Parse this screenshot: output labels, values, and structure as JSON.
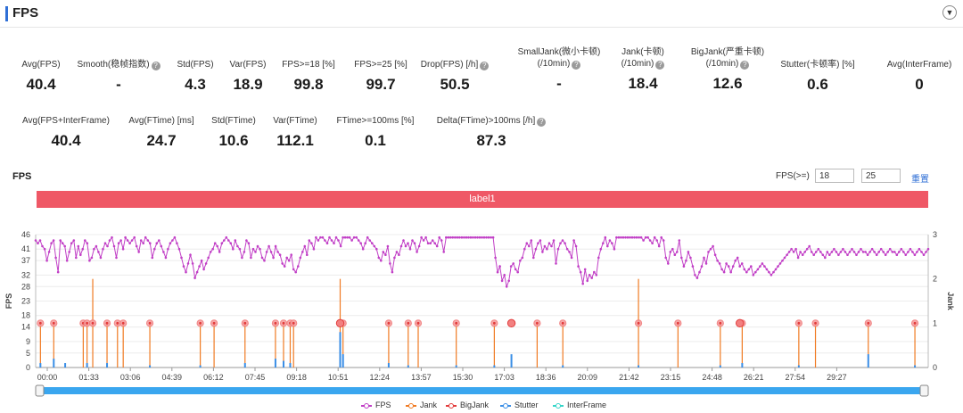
{
  "header": {
    "title": "FPS",
    "collapse_icon": "chevron-down-icon"
  },
  "stats_row1": [
    {
      "label": "Avg(FPS)",
      "value": "40.4",
      "help": false
    },
    {
      "label": "Smooth(稳帧指数)",
      "value": "-",
      "help": true
    },
    {
      "label": "Std(FPS)",
      "value": "4.3",
      "help": false
    },
    {
      "label": "Var(FPS)",
      "value": "18.9",
      "help": false
    },
    {
      "label": "FPS>=18 [%]",
      "value": "99.8",
      "help": false
    },
    {
      "label": "FPS>=25 [%]",
      "value": "99.7",
      "help": false
    },
    {
      "label": "Drop(FPS) [/h]",
      "value": "50.5",
      "help": true
    },
    {
      "label": "SmallJank(微小卡顿)",
      "label2": "(/10min)",
      "value": "-",
      "help": true
    },
    {
      "label": "Jank(卡顿)",
      "label2": "(/10min)",
      "value": "18.4",
      "help": true
    },
    {
      "label": "BigJank(严重卡顿)",
      "label2": "(/10min)",
      "value": "12.6",
      "help": true
    },
    {
      "label": "Stutter(卡顿率) [%]",
      "value": "0.6",
      "help": false
    },
    {
      "label": "Avg(InterFrame)",
      "value": "0",
      "help": false
    }
  ],
  "stats_row2": [
    {
      "label": "Avg(FPS+InterFrame)",
      "value": "40.4",
      "help": false
    },
    {
      "label": "Avg(FTime) [ms]",
      "value": "24.7",
      "help": false
    },
    {
      "label": "Std(FTime)",
      "value": "10.6",
      "help": false
    },
    {
      "label": "Var(FTime)",
      "value": "112.1",
      "help": false
    },
    {
      "label": "FTime>=100ms [%]",
      "value": "0.1",
      "help": false
    },
    {
      "label": "Delta(FTime)>100ms [/h]",
      "value": "87.3",
      "help": true
    }
  ],
  "chart_controls": {
    "title": "FPS",
    "threshold_label": "FPS(>=)",
    "threshold_low": "18",
    "threshold_high": "25",
    "reset_label": "重置",
    "label_bar": "label1"
  },
  "chart_data": {
    "type": "line",
    "xlabel": "",
    "ylabel": "FPS",
    "y2label": "Jank",
    "ylim": [
      0,
      46
    ],
    "y_ticks": [
      0,
      5,
      9,
      14,
      18,
      23,
      28,
      32,
      37,
      41,
      46
    ],
    "y2lim": [
      0,
      3
    ],
    "y2_ticks": [
      0,
      1,
      2,
      3
    ],
    "x_range_seconds": [
      0,
      1876
    ],
    "x_tick_labels": [
      "00:00",
      "01:33",
      "03:06",
      "04:39",
      "06:12",
      "07:45",
      "09:18",
      "10:51",
      "12:24",
      "13:57",
      "15:30",
      "17:03",
      "18:36",
      "20:09",
      "21:42",
      "23:15",
      "24:48",
      "26:21",
      "27:54",
      "29:27"
    ],
    "fps_series": {
      "name": "FPS",
      "color": "#c13fc6",
      "values": [
        44,
        43,
        44,
        42,
        41,
        37,
        40,
        43,
        44,
        38,
        33,
        44,
        43,
        42,
        37,
        40,
        43,
        44,
        38,
        42,
        39,
        41,
        44,
        43,
        37,
        38,
        41,
        42,
        40,
        38,
        41,
        43,
        42,
        44,
        45,
        42,
        38,
        43,
        44,
        41,
        45,
        44,
        43,
        44,
        45,
        42,
        40,
        44,
        43,
        45,
        44,
        43,
        38,
        41,
        43,
        44,
        42,
        40,
        38,
        41,
        43,
        44,
        45,
        43,
        41,
        38,
        35,
        33,
        36,
        39,
        36,
        31,
        33,
        35,
        37,
        34,
        36,
        38,
        40,
        41,
        43,
        42,
        40,
        43,
        44,
        45,
        44,
        43,
        41,
        44,
        42,
        41,
        38,
        40,
        44,
        43,
        38,
        41,
        40,
        42,
        41,
        38,
        37,
        40,
        42,
        40,
        38,
        42,
        40,
        39,
        36,
        35,
        38,
        37,
        39,
        34,
        33,
        35,
        38,
        40,
        42,
        39,
        44,
        43,
        41,
        45,
        44,
        45,
        45,
        44,
        43,
        45,
        44,
        43,
        45,
        44,
        42,
        45,
        45,
        45,
        45,
        44,
        45,
        45,
        44,
        43,
        41,
        43,
        45,
        44,
        43,
        42,
        41,
        38,
        37,
        40,
        39,
        42,
        36,
        33,
        38,
        40,
        39,
        42,
        44,
        42,
        43,
        41,
        44,
        43,
        40,
        42,
        45,
        44,
        45,
        43,
        43,
        44,
        43,
        42,
        45,
        44,
        40,
        45,
        45,
        45,
        45,
        45,
        45,
        45,
        45,
        45,
        45,
        45,
        45,
        45,
        45,
        45,
        45,
        45,
        45,
        45,
        45,
        45,
        45,
        38,
        33,
        35,
        30,
        32,
        28,
        30,
        35,
        36,
        34,
        33,
        37,
        38,
        41,
        43,
        42,
        44,
        38,
        41,
        43,
        44,
        40,
        42,
        41,
        43,
        42,
        44,
        36,
        41,
        43,
        44,
        43,
        41,
        40,
        38,
        44,
        42,
        35,
        33,
        29,
        34,
        30,
        32,
        31,
        33,
        32,
        38,
        41,
        43,
        45,
        42,
        44,
        43,
        41,
        45,
        45,
        45,
        45,
        45,
        45,
        45,
        45,
        45,
        45,
        45,
        45,
        44,
        45,
        45,
        44,
        43,
        45,
        44,
        42,
        45,
        44,
        38,
        36,
        40,
        41,
        39,
        40,
        44,
        38,
        35,
        37,
        40,
        38,
        35,
        32,
        31,
        33,
        35,
        38,
        36,
        40,
        41,
        42,
        39,
        37,
        36,
        34,
        33,
        36,
        35,
        33,
        35,
        37,
        38,
        35,
        36,
        34,
        33,
        34,
        35,
        32,
        33,
        34,
        35,
        36,
        35,
        34,
        33,
        32,
        33,
        34,
        35,
        36,
        37,
        38,
        39,
        40,
        41,
        40,
        41,
        38,
        40,
        39,
        40,
        41,
        42,
        40,
        39,
        40,
        41,
        40,
        39,
        38,
        40,
        39,
        40,
        41,
        40,
        39,
        40,
        41,
        40,
        39,
        40,
        41,
        40,
        39,
        40,
        41,
        40,
        40,
        39,
        40,
        41,
        40,
        39,
        40,
        41,
        40,
        39,
        40,
        41,
        40,
        40,
        39,
        40,
        41,
        40,
        39,
        40,
        41,
        40,
        39,
        40,
        41,
        40,
        39,
        40,
        41
      ]
    },
    "jank_series": {
      "name": "Jank",
      "color": "#f07a22",
      "unit": "count",
      "spikes": [
        {
          "t": 10,
          "v": 1
        },
        {
          "t": 38,
          "v": 1
        },
        {
          "t": 100,
          "v": 1
        },
        {
          "t": 108,
          "v": 1
        },
        {
          "t": 120,
          "v": 2
        },
        {
          "t": 150,
          "v": 1
        },
        {
          "t": 172,
          "v": 1
        },
        {
          "t": 184,
          "v": 1
        },
        {
          "t": 240,
          "v": 1
        },
        {
          "t": 346,
          "v": 1
        },
        {
          "t": 375,
          "v": 1
        },
        {
          "t": 440,
          "v": 1
        },
        {
          "t": 504,
          "v": 1
        },
        {
          "t": 521,
          "v": 1
        },
        {
          "t": 535,
          "v": 1
        },
        {
          "t": 542,
          "v": 1
        },
        {
          "t": 640,
          "v": 2
        },
        {
          "t": 646,
          "v": 1
        },
        {
          "t": 742,
          "v": 1
        },
        {
          "t": 783,
          "v": 1
        },
        {
          "t": 804,
          "v": 1
        },
        {
          "t": 884,
          "v": 1
        },
        {
          "t": 964,
          "v": 1
        },
        {
          "t": 1054,
          "v": 1
        },
        {
          "t": 1108,
          "v": 1
        },
        {
          "t": 1267,
          "v": 2
        },
        {
          "t": 1350,
          "v": 1
        },
        {
          "t": 1439,
          "v": 1
        },
        {
          "t": 1485,
          "v": 1
        },
        {
          "t": 1604,
          "v": 1
        },
        {
          "t": 1639,
          "v": 1
        },
        {
          "t": 1750,
          "v": 1
        },
        {
          "t": 1848,
          "v": 1
        }
      ]
    },
    "bigjank_series": {
      "name": "BigJank",
      "color": "#e23b3b",
      "spikes": [
        {
          "t": 640,
          "v": 1
        },
        {
          "t": 1000,
          "v": 1
        },
        {
          "t": 1480,
          "v": 1
        }
      ]
    },
    "stutter_series": {
      "name": "Stutter",
      "color": "#3a8ee6",
      "spikes": [
        {
          "t": 10,
          "v": 0.1
        },
        {
          "t": 38,
          "v": 0.2
        },
        {
          "t": 62,
          "v": 0.1
        },
        {
          "t": 108,
          "v": 0.1
        },
        {
          "t": 150,
          "v": 0.1
        },
        {
          "t": 240,
          "v": 0.05
        },
        {
          "t": 346,
          "v": 0.05
        },
        {
          "t": 440,
          "v": 0.1
        },
        {
          "t": 504,
          "v": 0.2
        },
        {
          "t": 521,
          "v": 0.15
        },
        {
          "t": 535,
          "v": 0.1
        },
        {
          "t": 640,
          "v": 0.8
        },
        {
          "t": 646,
          "v": 0.3
        },
        {
          "t": 742,
          "v": 0.1
        },
        {
          "t": 783,
          "v": 0.05
        },
        {
          "t": 884,
          "v": 0.05
        },
        {
          "t": 964,
          "v": 0.05
        },
        {
          "t": 1000,
          "v": 0.3
        },
        {
          "t": 1108,
          "v": 0.05
        },
        {
          "t": 1267,
          "v": 0.05
        },
        {
          "t": 1439,
          "v": 0.05
        },
        {
          "t": 1485,
          "v": 0.1
        },
        {
          "t": 1604,
          "v": 0.05
        },
        {
          "t": 1750,
          "v": 0.3
        },
        {
          "t": 1848,
          "v": 0.05
        }
      ]
    },
    "interframe_series": {
      "name": "InterFrame",
      "color": "#35d5c8",
      "values": []
    },
    "legend": [
      "FPS",
      "Jank",
      "BigJank",
      "Stutter",
      "InterFrame"
    ],
    "legend_placement": "bottom",
    "grid": true
  }
}
